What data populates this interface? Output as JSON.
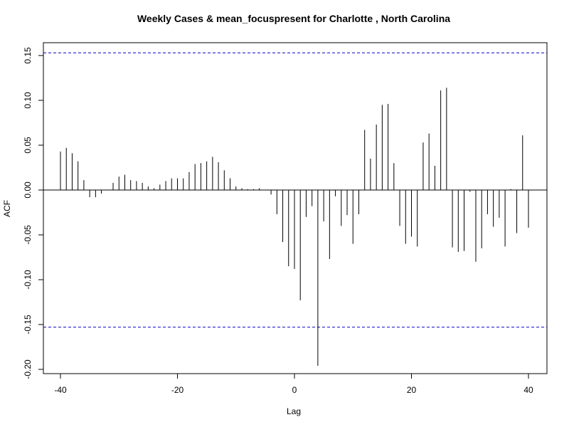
{
  "chart_data": {
    "type": "bar",
    "title": "Weekly Cases & mean_focuspresent for Charlotte , North Carolina",
    "xlabel": "Lag",
    "ylabel": "ACF",
    "xlim": [
      -40,
      40
    ],
    "ylim": [
      -0.2,
      0.15
    ],
    "x_ticks": [
      -40,
      -20,
      0,
      20,
      40
    ],
    "x_tick_labels": [
      "-40",
      "-20",
      "0",
      "20",
      "40"
    ],
    "y_ticks": [
      -0.2,
      -0.15,
      -0.1,
      -0.05,
      0.0,
      0.05,
      0.1,
      0.15
    ],
    "y_tick_labels": [
      "-0.20",
      "-0.15",
      "-0.10",
      "-0.05",
      "0.00",
      "0.05",
      "0.10",
      "0.15"
    ],
    "confidence_bound": 0.153,
    "confidence_color": "#0000cc",
    "bar_color": "#000000",
    "lags": [
      -40,
      -39,
      -38,
      -37,
      -36,
      -35,
      -34,
      -33,
      -32,
      -31,
      -30,
      -29,
      -28,
      -27,
      -26,
      -25,
      -24,
      -23,
      -22,
      -21,
      -20,
      -19,
      -18,
      -17,
      -16,
      -15,
      -14,
      -13,
      -12,
      -11,
      -10,
      -9,
      -8,
      -7,
      -6,
      -5,
      -4,
      -3,
      -2,
      -1,
      0,
      1,
      2,
      3,
      4,
      5,
      6,
      7,
      8,
      9,
      10,
      11,
      12,
      13,
      14,
      15,
      16,
      17,
      18,
      19,
      20,
      21,
      22,
      23,
      24,
      25,
      26,
      27,
      28,
      29,
      30,
      31,
      32,
      33,
      34,
      35,
      36,
      37,
      38,
      39,
      40
    ],
    "values": [
      0.043,
      0.047,
      0.041,
      0.032,
      0.011,
      -0.008,
      -0.008,
      -0.004,
      0.0,
      0.008,
      0.015,
      0.017,
      0.011,
      0.01,
      0.008,
      0.004,
      0.002,
      0.006,
      0.01,
      0.013,
      0.013,
      0.013,
      0.02,
      0.029,
      0.03,
      0.032,
      0.037,
      0.031,
      0.022,
      0.013,
      0.004,
      0.002,
      0.001,
      0.001,
      0.002,
      0.0,
      -0.005,
      -0.027,
      -0.058,
      -0.085,
      -0.088,
      -0.123,
      -0.03,
      -0.018,
      -0.196,
      -0.035,
      -0.077,
      -0.007,
      -0.04,
      -0.028,
      -0.06,
      -0.027,
      0.067,
      0.035,
      0.073,
      0.095,
      0.096,
      0.03,
      -0.04,
      -0.06,
      -0.052,
      -0.063,
      0.053,
      0.063,
      0.027,
      0.111,
      0.114,
      -0.064,
      -0.069,
      -0.068,
      -0.002,
      -0.08,
      -0.065,
      -0.027,
      -0.041,
      -0.031,
      -0.063,
      0.001,
      -0.048,
      0.061,
      -0.042
    ]
  }
}
